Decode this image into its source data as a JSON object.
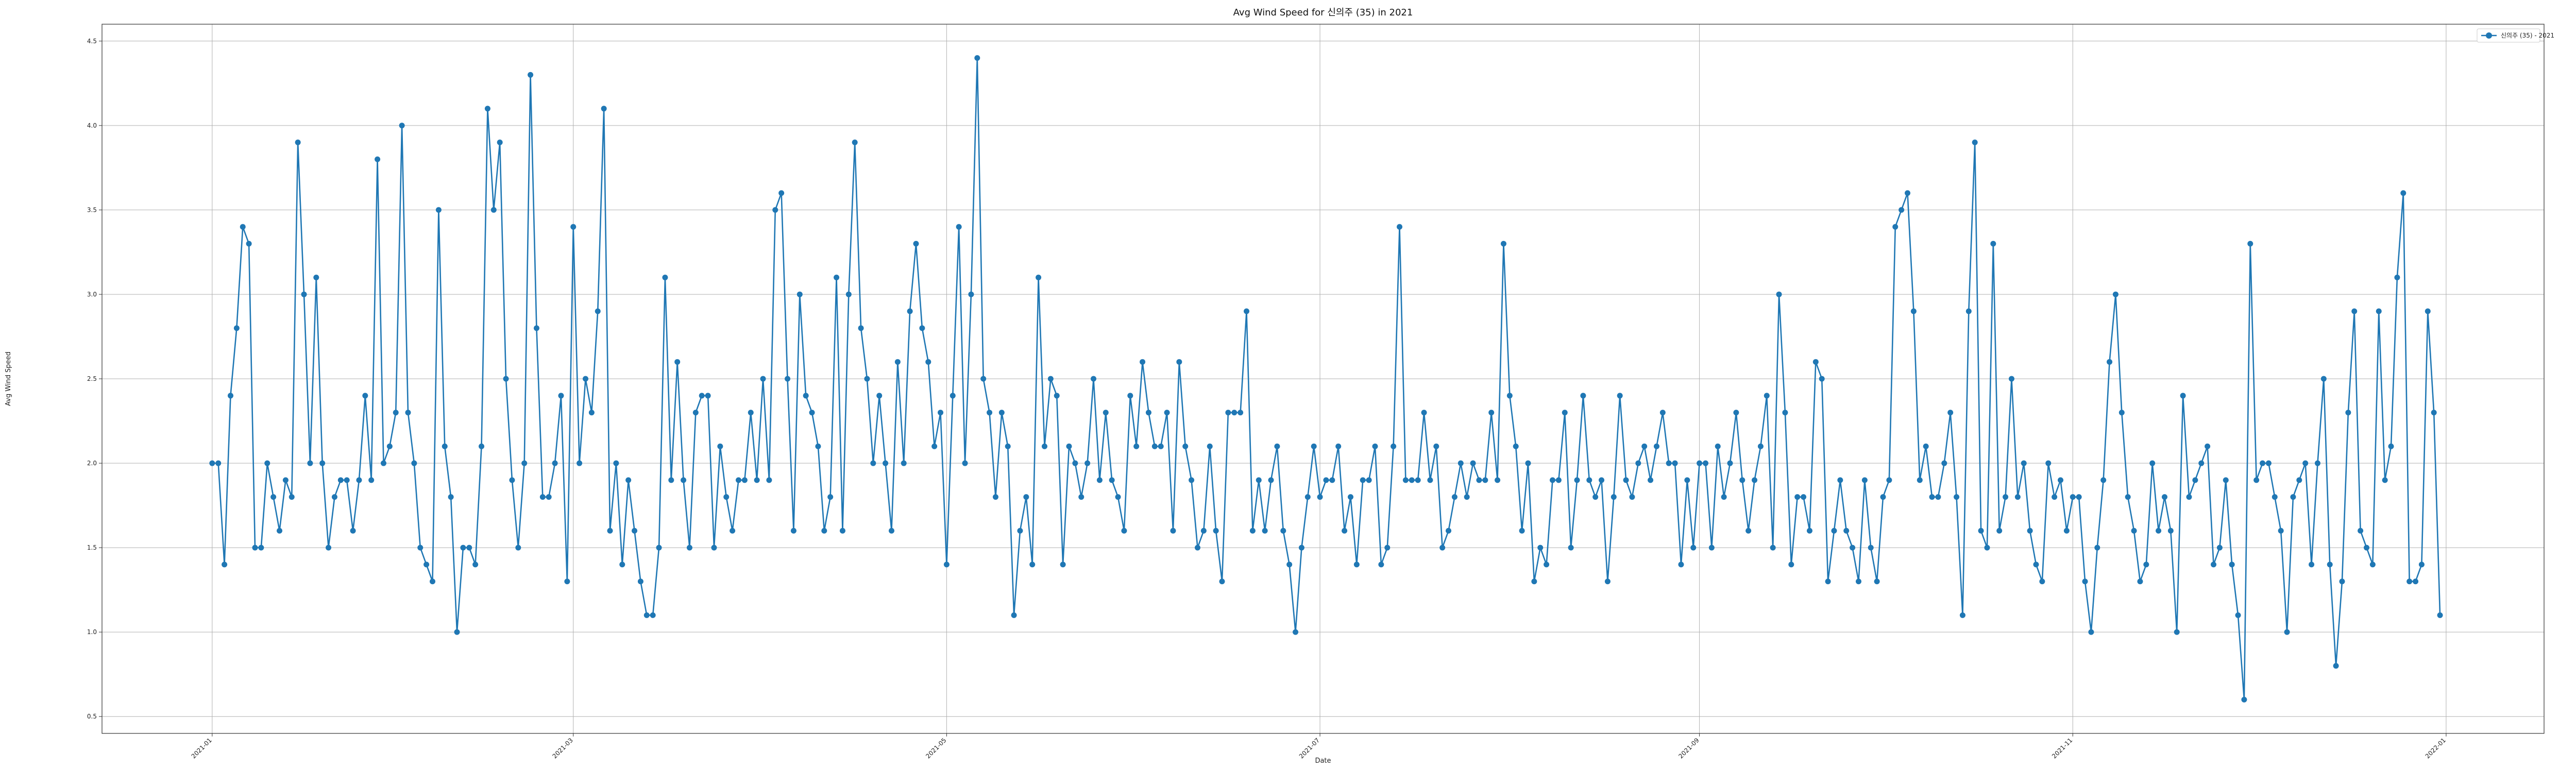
{
  "chart_data": {
    "type": "line",
    "title": "Avg Wind Speed for 신의주 (35) in 2021",
    "xlabel": "Date",
    "ylabel": "Avg Wind Speed",
    "grid": true,
    "legend_position": "top-right",
    "xlim": [
      "2020-12-14",
      "2022-01-17"
    ],
    "ylim": [
      0.4,
      4.6
    ],
    "y_ticks": [
      0.5,
      1.0,
      1.5,
      2.0,
      2.5,
      3.0,
      3.5,
      4.0,
      4.5
    ],
    "y_tick_labels": [
      "0.5",
      "1.0",
      "1.5",
      "2.0",
      "2.5",
      "3.0",
      "3.5",
      "4.0",
      "4.5"
    ],
    "x_ticks": [
      "2021-01-01",
      "2021-03-01",
      "2021-05-01",
      "2021-07-01",
      "2021-09-01",
      "2021-11-01",
      "2022-01-01"
    ],
    "x_tick_labels": [
      "2021-01",
      "2021-03",
      "2021-05",
      "2021-07",
      "2021-09",
      "2021-11",
      "2022-01"
    ],
    "x_start_date": "2021-01-01",
    "series": [
      {
        "name": "신의주 (35) - 2021",
        "color": "#1f77b4",
        "values": [
          2.0,
          2.0,
          1.4,
          2.4,
          2.8,
          3.4,
          3.3,
          1.5,
          1.5,
          2.0,
          1.8,
          1.6,
          1.9,
          1.8,
          3.9,
          3.0,
          2.0,
          3.1,
          2.0,
          1.5,
          1.8,
          1.9,
          1.9,
          1.6,
          1.9,
          2.4,
          1.9,
          3.8,
          2.0,
          2.1,
          2.3,
          4.0,
          2.3,
          2.0,
          1.5,
          1.4,
          1.3,
          3.5,
          2.1,
          1.8,
          1.0,
          1.5,
          1.5,
          1.4,
          2.1,
          4.1,
          3.5,
          3.9,
          2.5,
          1.9,
          1.5,
          2.0,
          4.3,
          2.8,
          1.8,
          1.8,
          2.0,
          2.4,
          1.3,
          3.4,
          2.0,
          2.5,
          2.3,
          2.9,
          4.1,
          1.6,
          2.0,
          1.4,
          1.9,
          1.6,
          1.3,
          1.1,
          1.1,
          1.5,
          3.1,
          1.9,
          2.6,
          1.9,
          1.5,
          2.3,
          2.4,
          2.4,
          1.5,
          2.1,
          1.8,
          1.6,
          1.9,
          1.9,
          2.3,
          1.9,
          2.5,
          1.9,
          3.5,
          3.6,
          2.5,
          1.6,
          3.0,
          2.4,
          2.3,
          2.1,
          1.6,
          1.8,
          3.1,
          1.6,
          3.0,
          3.9,
          2.8,
          2.5,
          2.0,
          2.4,
          2.0,
          1.6,
          2.6,
          2.0,
          2.9,
          3.3,
          2.8,
          2.6,
          2.1,
          2.3,
          1.4,
          2.4,
          3.4,
          2.0,
          3.0,
          4.4,
          2.5,
          2.3,
          1.8,
          2.3,
          2.1,
          1.1,
          1.6,
          1.8,
          1.4,
          3.1,
          2.1,
          2.5,
          2.4,
          1.4,
          2.1,
          2.0,
          1.8,
          2.0,
          2.5,
          1.9,
          2.3,
          1.9,
          1.8,
          1.6,
          2.4,
          2.1,
          2.6,
          2.3,
          2.1,
          2.1,
          2.3,
          1.6,
          2.6,
          2.1,
          1.9,
          1.5,
          1.6,
          2.1,
          1.6,
          1.3,
          2.3,
          2.3,
          2.3,
          2.9,
          1.6,
          1.9,
          1.6,
          1.9,
          2.1,
          1.6,
          1.4,
          1.0,
          1.5,
          1.8,
          2.1,
          1.8,
          1.9,
          1.9,
          2.1,
          1.6,
          1.8,
          1.4,
          1.9,
          1.9,
          2.1,
          1.4,
          1.5,
          2.1,
          3.4,
          1.9,
          1.9,
          1.9,
          2.3,
          1.9,
          2.1,
          1.5,
          1.6,
          1.8,
          2.0,
          1.8,
          2.0,
          1.9,
          1.9,
          2.3,
          1.9,
          3.3,
          2.4,
          2.1,
          1.6,
          2.0,
          1.3,
          1.5,
          1.4,
          1.9,
          1.9,
          2.3,
          1.5,
          1.9,
          2.4,
          1.9,
          1.8,
          1.9,
          1.3,
          1.8,
          2.4,
          1.9,
          1.8,
          2.0,
          2.1,
          1.9,
          2.1,
          2.3,
          2.0,
          2.0,
          1.4,
          1.9,
          1.5,
          2.0,
          2.0,
          1.5,
          2.1,
          1.8,
          2.0,
          2.3,
          1.9,
          1.6,
          1.9,
          2.1,
          2.4,
          1.5,
          3.0,
          2.3,
          1.4,
          1.8,
          1.8,
          1.6,
          2.6,
          2.5,
          1.3,
          1.6,
          1.9,
          1.6,
          1.5,
          1.3,
          1.9,
          1.5,
          1.3,
          1.8,
          1.9,
          3.4,
          3.5,
          3.6,
          2.9,
          1.9,
          2.1,
          1.8,
          1.8,
          2.0,
          2.3,
          1.8,
          1.1,
          2.9,
          3.9,
          1.6,
          1.5,
          3.3,
          1.6,
          1.8,
          2.5,
          1.8,
          2.0,
          1.6,
          1.4,
          1.3,
          2.0,
          1.8,
          1.9,
          1.6,
          1.8,
          1.8,
          1.3,
          1.0,
          1.5,
          1.9,
          2.6,
          3.0,
          2.3,
          1.8,
          1.6,
          1.3,
          1.4,
          2.0,
          1.6,
          1.8,
          1.6,
          1.0,
          2.4,
          1.8,
          1.9,
          2.0,
          2.1,
          1.4,
          1.5,
          1.9,
          1.4,
          1.1,
          0.6,
          3.3,
          1.9,
          2.0,
          2.0,
          1.8,
          1.6,
          1.0,
          1.8,
          1.9,
          2.0,
          1.4,
          2.0,
          2.5,
          1.4,
          0.8,
          1.3,
          2.3,
          2.9,
          1.6,
          1.5,
          1.4,
          2.9,
          1.9,
          2.1,
          3.1,
          3.6,
          1.3,
          1.3,
          1.4,
          2.9,
          2.3,
          1.1
        ]
      }
    ]
  }
}
